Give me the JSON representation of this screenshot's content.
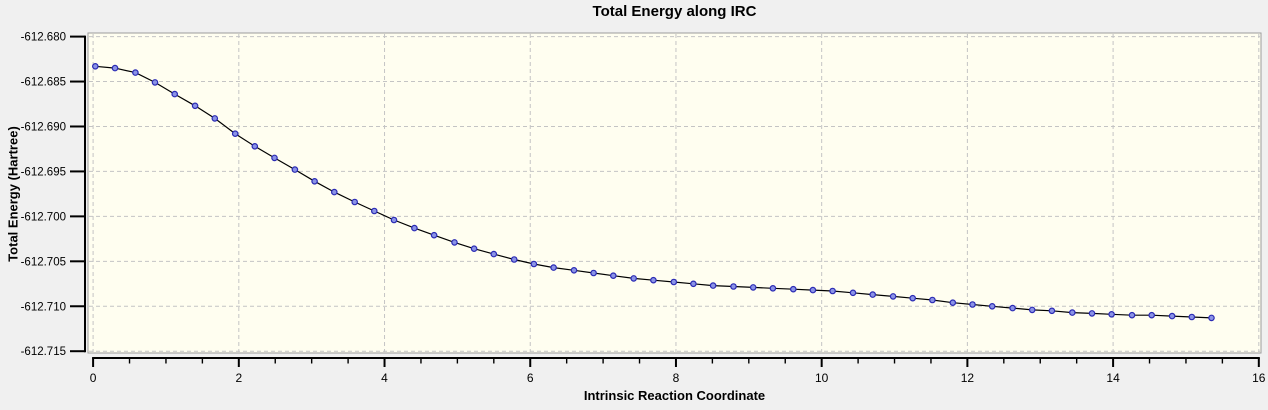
{
  "chart_data": {
    "type": "line",
    "title": "Total Energy along IRC",
    "xlabel": "Intrinsic Reaction Coordinate",
    "ylabel": "Total Energy (Hartree)",
    "legend": {
      "show": false
    },
    "grid": {
      "show": true,
      "style": "dashed"
    },
    "x_axis": {
      "min": -0.07,
      "max": 16.03,
      "major_ticks": [
        0,
        2,
        4,
        6,
        8,
        10,
        12,
        14,
        16
      ],
      "major_tick_labels": [
        "0",
        "2",
        "4",
        "6",
        "8",
        "10",
        "12",
        "14",
        "16"
      ],
      "minor_tick_step": 0.5
    },
    "y_axis": {
      "min": -612.7152,
      "max": -612.6796,
      "tick_values": [
        -612.68,
        -612.685,
        -612.69,
        -612.695,
        -612.7,
        -612.705,
        -612.71,
        -612.715
      ],
      "tick_labels": [
        "-612.680",
        "-612.685",
        "-612.690",
        "-612.695",
        "-612.700",
        "-612.705",
        "-612.710",
        "-612.715"
      ]
    },
    "series": [
      {
        "name": "Total Energy",
        "marker": "circle",
        "x": [
          0.03,
          0.3,
          0.58,
          0.85,
          1.12,
          1.4,
          1.67,
          1.95,
          2.22,
          2.49,
          2.77,
          3.04,
          3.31,
          3.59,
          3.86,
          4.13,
          4.41,
          4.68,
          4.96,
          5.23,
          5.5,
          5.78,
          6.05,
          6.32,
          6.6,
          6.87,
          7.14,
          7.42,
          7.69,
          7.97,
          8.24,
          8.51,
          8.79,
          9.06,
          9.33,
          9.61,
          9.88,
          10.15,
          10.43,
          10.7,
          10.98,
          11.25,
          11.52,
          11.8,
          12.07,
          12.34,
          12.62,
          12.89,
          13.16,
          13.44,
          13.71,
          13.98,
          14.26,
          14.53,
          14.81,
          15.08,
          15.35
        ],
        "y": [
          -612.6833,
          -612.6835,
          -612.684,
          -612.6851,
          -612.6864,
          -612.6877,
          -612.6891,
          -612.6908,
          -612.6922,
          -612.6935,
          -612.6948,
          -612.6961,
          -612.6973,
          -612.6984,
          -612.6994,
          -612.7004,
          -612.7013,
          -612.7021,
          -612.7029,
          -612.7036,
          -612.7042,
          -612.7048,
          -612.7053,
          -612.7057,
          -612.706,
          -612.7063,
          -612.7066,
          -612.7069,
          -612.7071,
          -612.7073,
          -612.7075,
          -612.7077,
          -612.7078,
          -612.7079,
          -612.708,
          -612.7081,
          -612.7082,
          -612.7083,
          -612.7085,
          -612.7087,
          -612.7089,
          -612.7091,
          -612.7093,
          -612.7096,
          -612.7098,
          -612.71,
          -612.7102,
          -612.7104,
          -612.7105,
          -612.7107,
          -612.7108,
          -612.7109,
          -612.711,
          -612.711,
          -612.7111,
          -612.7112,
          -612.7113
        ]
      }
    ],
    "colors": {
      "page_background": "#f0f0f0",
      "plot_background": "#fffef0",
      "plot_border": "#9c9c9c",
      "grid": "#c4c4c4",
      "axis": "#000000",
      "line": "#000000",
      "marker_fill": "#8b93e6",
      "marker_stroke": "#2b2bb4",
      "text": "#000000"
    }
  }
}
